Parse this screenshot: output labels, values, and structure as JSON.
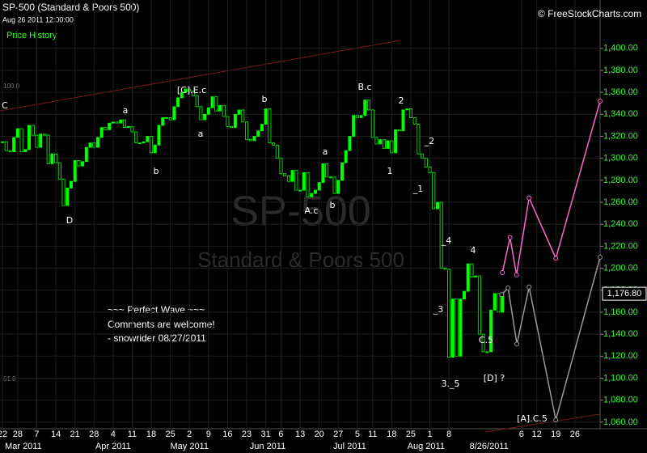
{
  "header": {
    "title": "SP-500 (Standard & Poors 500)",
    "timestamp": "Aug 26 2011 12:00:00",
    "panel": "Price History",
    "brand": "© FreeStockCharts.com"
  },
  "chart_data": {
    "type": "candlestick",
    "watermark": "SP-500",
    "watermark_subtitle": "Standard & Poors 500",
    "color": "#00ff00",
    "grid": true,
    "closes": [
      1315,
      1307,
      1306,
      1319,
      1327,
      1306,
      1308,
      1330,
      1321,
      1310,
      1322,
      1321,
      1295,
      1304,
      1296,
      1281,
      1257,
      1273,
      1279,
      1298,
      1293,
      1297,
      1310,
      1314,
      1310,
      1319,
      1328,
      1326,
      1332,
      1333,
      1332,
      1335,
      1328,
      1329,
      1324,
      1314,
      1314,
      1315,
      1320,
      1305,
      1312,
      1330,
      1337,
      1337,
      1335,
      1347,
      1355,
      1360,
      1363,
      1361,
      1357,
      1347,
      1335,
      1340,
      1346,
      1356,
      1343,
      1348,
      1338,
      1329,
      1328,
      1340,
      1344,
      1333,
      1317,
      1316,
      1320,
      1325,
      1331,
      1345,
      1314,
      1312,
      1300,
      1286,
      1284,
      1279,
      1289,
      1271,
      1271,
      1287,
      1265,
      1268,
      1271,
      1278,
      1295,
      1283,
      1283,
      1268,
      1280,
      1296,
      1307,
      1320,
      1339,
      1337,
      1339,
      1353,
      1344,
      1319,
      1313,
      1317,
      1309,
      1316,
      1305,
      1326,
      1325,
      1344,
      1345,
      1337,
      1331,
      1304,
      1300,
      1292,
      1287,
      1254,
      1260,
      1200,
      1199,
      1119,
      1172,
      1120,
      1172,
      1179,
      1204,
      1192,
      1193,
      1140,
      1124,
      1124,
      1162,
      1177,
      1160,
      1177
    ],
    "last_price": {
      "value": 1176.8,
      "label": "1,176.80"
    },
    "projections": [
      {
        "color": "#ff66cc",
        "x": [
          131,
          133,
          134.7,
          138,
          145,
          156.6
        ],
        "values": [
          1196,
          1228,
          1194,
          1264,
          1209,
          1352
        ]
      },
      {
        "color": "#999999",
        "x": [
          130.8,
          132.5,
          134.8,
          138,
          145,
          156.6
        ],
        "values": [
          1176,
          1182,
          1131,
          1183,
          1062,
          1210
        ]
      }
    ],
    "annotations": [
      "C",
      "[C].E.c",
      "a",
      "b",
      "a",
      "D",
      "b",
      "a",
      "b",
      "A.c",
      "B.c",
      "2",
      "1",
      "_2",
      "_1",
      "_4",
      "4",
      "_3",
      "3._5",
      "C.5",
      "[D] ?",
      "[A].C.5"
    ],
    "comment": [
      "~~~ Perfect Wave ~~~",
      "Comments are welcome!",
      "- snowrider  08/27/2011"
    ],
    "fib_labels": [
      "100.0",
      "61.8"
    ],
    "xlim": [
      -0.64,
      156.6
    ],
    "ylim": [
      1054,
      1444
    ],
    "xticks": [
      {
        "value": 0,
        "label": "22"
      },
      {
        "value": 4,
        "label": "28"
      },
      {
        "value": 9,
        "label": "7"
      },
      {
        "value": 14,
        "label": "14"
      },
      {
        "value": 19,
        "label": "21"
      },
      {
        "value": 24,
        "label": "28"
      },
      {
        "value": 29,
        "label": "4"
      },
      {
        "value": 34,
        "label": "11"
      },
      {
        "value": 39,
        "label": "18"
      },
      {
        "value": 44,
        "label": "25"
      },
      {
        "value": 49,
        "label": "2"
      },
      {
        "value": 54,
        "label": "9"
      },
      {
        "value": 59,
        "label": "16"
      },
      {
        "value": 64,
        "label": "23"
      },
      {
        "value": 69,
        "label": "31"
      },
      {
        "value": 73,
        "label": "6"
      },
      {
        "value": 78,
        "label": "13"
      },
      {
        "value": 83,
        "label": "20"
      },
      {
        "value": 88,
        "label": "27"
      },
      {
        "value": 93,
        "label": "5"
      },
      {
        "value": 97,
        "label": "11"
      },
      {
        "value": 102,
        "label": "18"
      },
      {
        "value": 107,
        "label": "25"
      },
      {
        "value": 112,
        "label": "1"
      },
      {
        "value": 117,
        "label": "8"
      },
      {
        "value": 136,
        "label": "6"
      },
      {
        "value": 140,
        "label": "12"
      },
      {
        "value": 145,
        "label": "19"
      },
      {
        "value": 150,
        "label": "26"
      }
    ],
    "month_ticks": [
      {
        "value": 5.5,
        "label": "Mar 2011"
      },
      {
        "value": 29,
        "label": "Apr 2011"
      },
      {
        "value": 49,
        "label": "May 2011"
      },
      {
        "value": 69.5,
        "label": "Jun 2011"
      },
      {
        "value": 91,
        "label": "Jul 2011"
      },
      {
        "value": 111,
        "label": "Aug 2011"
      },
      {
        "value": 127.5,
        "label": "8/26/2011"
      }
    ],
    "yticks": [
      {
        "value": 1060,
        "label": "1,060.00"
      },
      {
        "value": 1080,
        "label": "1,080.00"
      },
      {
        "value": 1100,
        "label": "1,100.00"
      },
      {
        "value": 1120,
        "label": "1,120.00"
      },
      {
        "value": 1140,
        "label": "1,140.00"
      },
      {
        "value": 1160,
        "label": "1,160.00"
      },
      {
        "value": 1180,
        "label": "1,180.00"
      },
      {
        "value": 1200,
        "label": "1,200.00"
      },
      {
        "value": 1220,
        "label": "1,220.00"
      },
      {
        "value": 1240,
        "label": "1,240.00"
      },
      {
        "value": 1260,
        "label": "1,260.00"
      },
      {
        "value": 1280,
        "label": "1,280.00"
      },
      {
        "value": 1300,
        "label": "1,300.00"
      },
      {
        "value": 1320,
        "label": "1,320.00"
      },
      {
        "value": 1340,
        "label": "1,340.00"
      },
      {
        "value": 1360,
        "label": "1,360.00"
      },
      {
        "value": 1380,
        "label": "1,380.00"
      },
      {
        "value": 1400,
        "label": "1,400.00"
      }
    ]
  }
}
